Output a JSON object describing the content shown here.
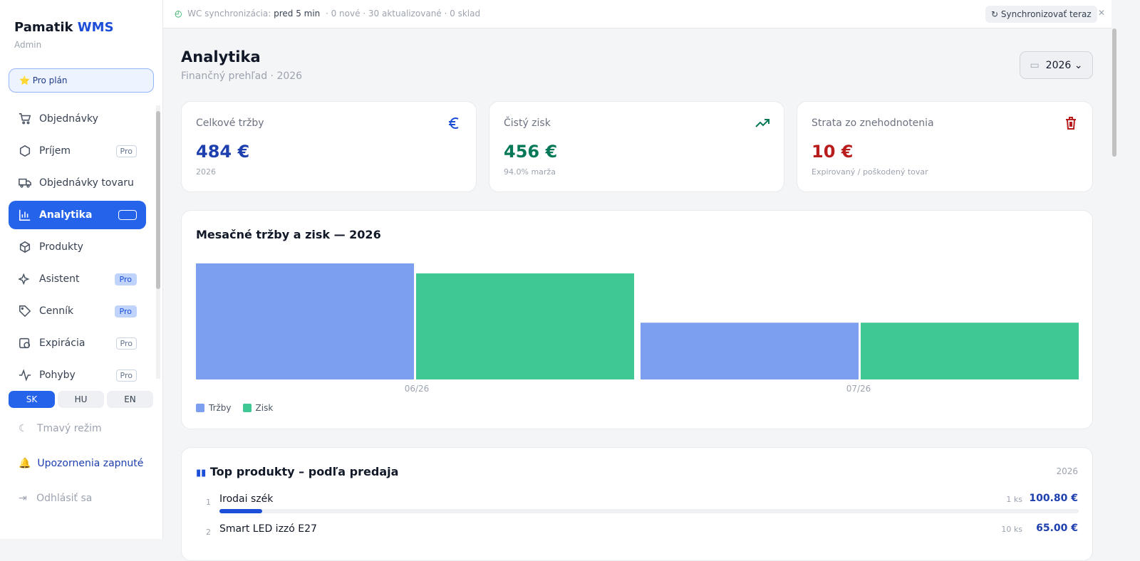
{
  "sidebar": {
    "brand": "Pamatik",
    "brand_accent": "WMS",
    "role": "Admin",
    "plan": "Pro plán",
    "nav": [
      {
        "label": "Objednávky"
      },
      {
        "label": "Príjem",
        "badge": "Pro"
      },
      {
        "label": "Objednávky tovaru"
      },
      {
        "label": "Analytika"
      },
      {
        "label": "Produkty"
      },
      {
        "label": "Asistent",
        "badge": "Pro"
      },
      {
        "label": "Cenník",
        "badge": "Pro"
      },
      {
        "label": "Expirácia",
        "badge": "Pro"
      },
      {
        "label": "Pohyby",
        "badge": "Pro"
      }
    ],
    "languages": [
      "SK",
      "HU",
      "EN"
    ],
    "dark_mode": "Tmavý režim",
    "notifications": "Upozornenia zapnuté",
    "logout": "Odhlásiť sa"
  },
  "topbar": {
    "sync_label": "WC synchronizácia:",
    "sync_time": "pred 5 min",
    "sync_stats": "· 0 nové · 30 aktualizované · 0 sklad",
    "sync_button": "Synchronizovať teraz"
  },
  "header": {
    "title": "Analytika",
    "subtitle": "Finančný prehľad · 2026",
    "year": "2026"
  },
  "kpis": [
    {
      "label": "Celkové tržby",
      "value": "484 €",
      "note": "2026"
    },
    {
      "label": "Čistý zisk",
      "value": "456 €",
      "note": "94.0% marža"
    },
    {
      "label": "Strata zo znehodnotenia",
      "value": "10 €",
      "note": "Expirovaný / poškodený tovar"
    }
  ],
  "chart_data": {
    "type": "bar",
    "title": "Mesačné tržby a zisk — 2026",
    "categories": [
      "06/26",
      "07/26"
    ],
    "series": [
      {
        "name": "Tržby",
        "color": "#7c9fef",
        "values": [
          325,
          159
        ]
      },
      {
        "name": "Zisk",
        "color": "#3fc794",
        "values": [
          297,
          159
        ]
      }
    ]
  },
  "top_products": {
    "title": "Top produkty – podľa predaja",
    "year": "2026",
    "items": [
      {
        "rank": "1",
        "name": "Irodai szék",
        "qty": "1 ks",
        "amount": "100.80 €"
      },
      {
        "rank": "2",
        "name": "Smart LED izzó E27",
        "qty": "10 ks",
        "amount": "65.00 €"
      }
    ]
  }
}
